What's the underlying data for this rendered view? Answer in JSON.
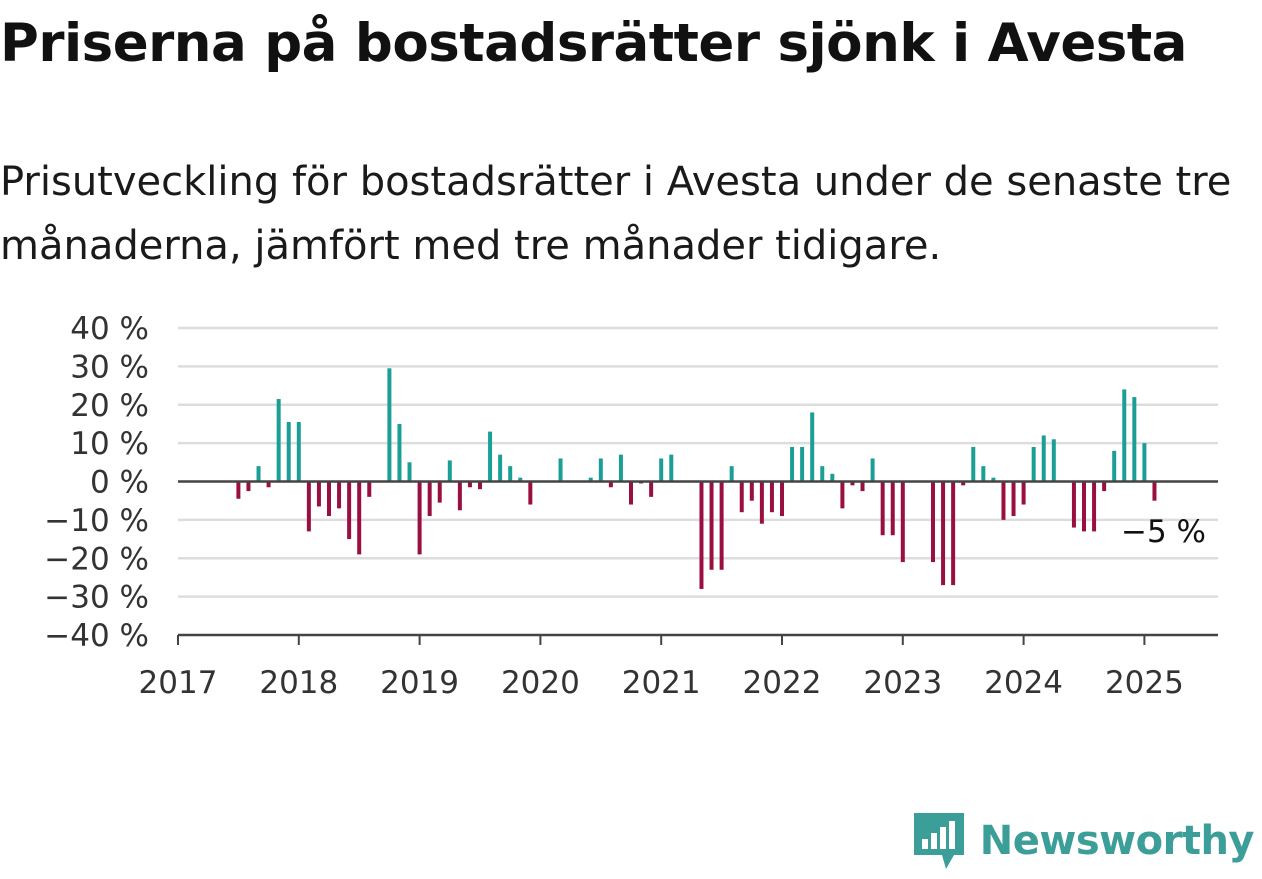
{
  "header": {
    "title": "Priserna på bostadsrätter sjönk i Avesta",
    "subtitle": "Prisutveckling för bostadsrätter i Avesta under de senaste tre månaderna, jämfört med tre månader tidigare."
  },
  "brand": {
    "name": "Newsworthy",
    "icon": "newsworthy-logo-icon",
    "color": "#3b9e99"
  },
  "chart_data": {
    "type": "bar",
    "title": "",
    "xlabel": "",
    "ylabel": "",
    "ylim": [
      -40,
      40
    ],
    "y_ticks": [
      "−40 %",
      "−30 %",
      "−20 %",
      "−10 %",
      "0 %",
      "10 %",
      "20 %",
      "30 %",
      "40 %"
    ],
    "y_tick_values": [
      -40,
      -30,
      -20,
      -10,
      0,
      10,
      20,
      30,
      40
    ],
    "x_ticks": [
      "2017",
      "2018",
      "2019",
      "2020",
      "2021",
      "2022",
      "2023",
      "2024",
      "2025"
    ],
    "x_tick_values": [
      "2017-01",
      "2018-01",
      "2019-01",
      "2020-01",
      "2021-01",
      "2022-01",
      "2023-01",
      "2024-01",
      "2025-01"
    ],
    "grid": true,
    "colors": {
      "positive": "#1b9e96",
      "negative": "#990f42",
      "grid": "#dddddd",
      "axis": "#444444"
    },
    "annotation": {
      "label": "−5 %",
      "at": "2025-03"
    },
    "series": [
      {
        "months": [
          "2017-07",
          "2017-08",
          "2017-09",
          "2017-10",
          "2017-11",
          "2017-12",
          "2018-01",
          "2018-02",
          "2018-03",
          "2018-04",
          "2018-05",
          "2018-06",
          "2018-07",
          "2018-08",
          "2018-09",
          "2018-10",
          "2018-11",
          "2018-12",
          "2019-01",
          "2019-02",
          "2019-03",
          "2019-04",
          "2019-05",
          "2019-06",
          "2019-07",
          "2019-08",
          "2019-09",
          "2019-10",
          "2019-11",
          "2019-12",
          "2020-01",
          "2020-02",
          "2020-03",
          "2020-04",
          "2020-05",
          "2020-06",
          "2020-07",
          "2020-08",
          "2020-09",
          "2020-10",
          "2020-11",
          "2020-12",
          "2021-01",
          "2021-02",
          "2021-03",
          "2021-04",
          "2021-05",
          "2021-06",
          "2021-07",
          "2021-08",
          "2021-09",
          "2021-10",
          "2021-11",
          "2021-12",
          "2022-01",
          "2022-02",
          "2022-03",
          "2022-04",
          "2022-05",
          "2022-06",
          "2022-07",
          "2022-08",
          "2022-09",
          "2022-10",
          "2022-11",
          "2022-12",
          "2023-01",
          "2023-02",
          "2023-03",
          "2023-04",
          "2023-05",
          "2023-06",
          "2023-07",
          "2023-08",
          "2023-09",
          "2023-10",
          "2023-11",
          "2023-12",
          "2024-01",
          "2024-02",
          "2024-03",
          "2024-04",
          "2024-05",
          "2024-06",
          "2024-07",
          "2024-08",
          "2024-09",
          "2024-10",
          "2024-11",
          "2024-12",
          "2025-01",
          "2025-02",
          "2025-03"
        ],
        "values": [
          -4.5,
          -2.5,
          4,
          -1.5,
          21.5,
          15.5,
          15.5,
          -13,
          -6.5,
          -9,
          -7,
          -15,
          -19,
          -4,
          null,
          29.5,
          15,
          5,
          -19,
          -9,
          -5.5,
          5.5,
          -7.5,
          -1.5,
          -2,
          13,
          7,
          4,
          1,
          -6,
          null,
          null,
          6,
          null,
          null,
          1,
          6,
          -1.5,
          7,
          -6,
          -0.5,
          -4,
          6,
          7,
          null,
          null,
          -28,
          -23,
          -23,
          4,
          -8,
          -5,
          -11,
          -8,
          -9,
          9,
          9,
          18,
          4,
          2,
          -7,
          -1,
          -2.5,
          6,
          -14,
          -14,
          -21,
          null,
          null,
          -21,
          -27,
          -27,
          -1,
          9,
          4,
          1,
          -10,
          -9,
          -6,
          9,
          12,
          11,
          null,
          -12,
          -13,
          -13,
          -2.5,
          8,
          24,
          22,
          10,
          -5,
          null
        ]
      }
    ]
  }
}
